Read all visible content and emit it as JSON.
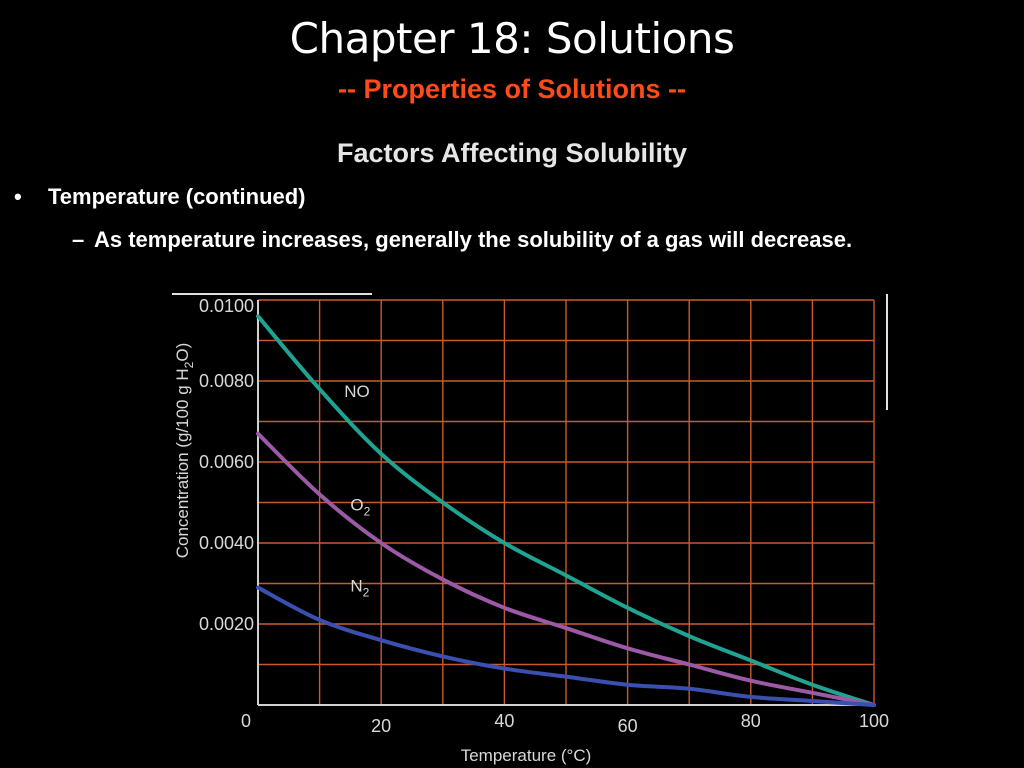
{
  "slide": {
    "title": "Chapter 18:  Solutions",
    "subtitle": "-- Properties of Solutions --",
    "heading": "Factors Affecting Solubility",
    "bullet_symbol": "•",
    "bullet": "Temperature (continued)",
    "sub_bullet_symbol": "–",
    "sub_bullet": "As temperature increases, generally the solubility of a gas will decrease."
  },
  "chart_data": {
    "type": "line",
    "xlabel": "Temperature (°C)",
    "ylabel_parts": [
      "Concentration (g/100 g H",
      "2",
      "O)"
    ],
    "xlim": [
      0,
      100
    ],
    "ylim": [
      0,
      0.01
    ],
    "x_ticks": [
      0,
      20,
      40,
      60,
      80,
      100
    ],
    "x_tick_labels": [
      "0",
      "20",
      "40",
      "60",
      "80",
      "100"
    ],
    "y_ticks": [
      0.002,
      0.004,
      0.006,
      0.008,
      0.01
    ],
    "y_tick_labels": [
      "0.0020",
      "0.0040",
      "0.0060",
      "0.0080",
      "0.0100"
    ],
    "grid": true,
    "background_color": "#000000",
    "grid_color": "#c85a2e",
    "series": [
      {
        "name": "NO",
        "label_parts": [
          "NO",
          ""
        ],
        "color": "#1fa392",
        "x": [
          0,
          10,
          20,
          30,
          40,
          50,
          60,
          70,
          80,
          90,
          100
        ],
        "y": [
          0.0096,
          0.0078,
          0.0062,
          0.005,
          0.004,
          0.0032,
          0.0024,
          0.0017,
          0.0011,
          0.0005,
          0.0
        ]
      },
      {
        "name": "O2",
        "label_parts": [
          "O",
          "2"
        ],
        "color": "#9b59a6",
        "x": [
          0,
          10,
          20,
          30,
          40,
          50,
          60,
          70,
          80,
          90,
          100
        ],
        "y": [
          0.0067,
          0.0052,
          0.004,
          0.0031,
          0.0024,
          0.0019,
          0.0014,
          0.001,
          0.0006,
          0.0003,
          0.0
        ]
      },
      {
        "name": "N2",
        "label_parts": [
          "N",
          "2"
        ],
        "color": "#3a4fb0",
        "x": [
          0,
          10,
          20,
          30,
          40,
          50,
          60,
          70,
          80,
          90,
          100
        ],
        "y": [
          0.0029,
          0.0021,
          0.0016,
          0.0012,
          0.0009,
          0.0007,
          0.0005,
          0.0004,
          0.0002,
          0.0001,
          0.0
        ]
      }
    ],
    "series_label_anchors": [
      {
        "x": 14,
        "y": 0.0076
      },
      {
        "x": 15,
        "y": 0.0048
      },
      {
        "x": 15,
        "y": 0.0028
      }
    ]
  }
}
